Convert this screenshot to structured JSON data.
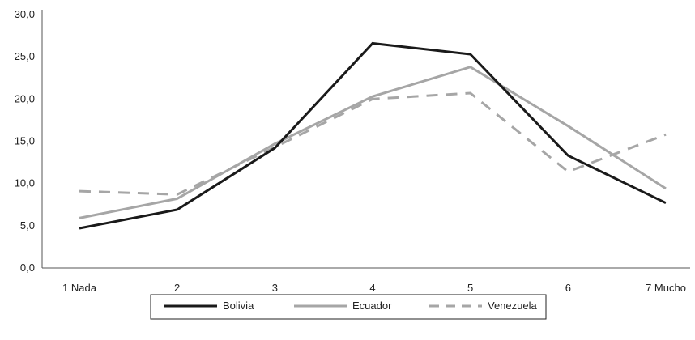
{
  "chart_data": {
    "type": "line",
    "categories": [
      "1 Nada",
      "2",
      "3",
      "4",
      "5",
      "6",
      "7 Mucho"
    ],
    "y_ticks": [
      "0,0",
      "5,0",
      "10,0",
      "15,0",
      "20,0",
      "25,0",
      "30,0"
    ],
    "ylim": [
      0,
      30
    ],
    "grid": false,
    "legend_position": "bottom",
    "series": [
      {
        "name": "Bolivia",
        "values": [
          4.7,
          6.9,
          14.2,
          26.6,
          25.3,
          13.3,
          7.7
        ],
        "color": "#1a1a1a",
        "style": "solid"
      },
      {
        "name": "Ecuador",
        "values": [
          5.9,
          8.2,
          14.7,
          20.3,
          23.8,
          16.8,
          9.4
        ],
        "color": "#a6a6a6",
        "style": "solid"
      },
      {
        "name": "Venezuela",
        "values": [
          9.1,
          8.7,
          14.3,
          20.0,
          20.7,
          11.4,
          15.8
        ],
        "color": "#a6a6a6",
        "style": "dashed"
      }
    ]
  }
}
